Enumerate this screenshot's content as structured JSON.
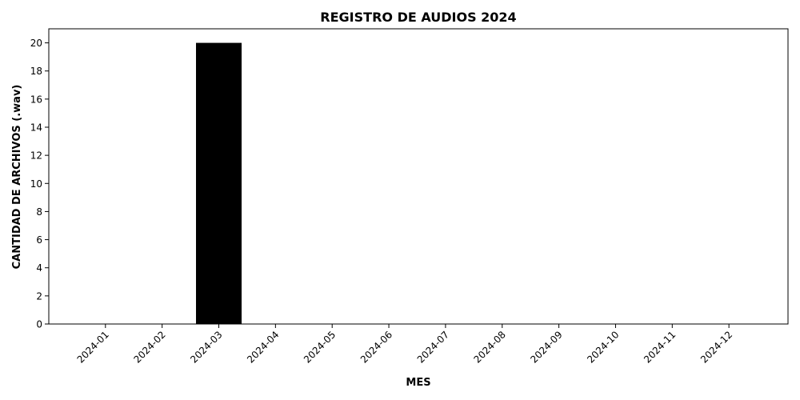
{
  "chart_data": {
    "type": "bar",
    "title": "REGISTRO DE AUDIOS 2024",
    "xlabel": "MES",
    "ylabel": "CANTIDAD DE ARCHIVOS (.wav)",
    "categories": [
      "2024-01",
      "2024-02",
      "2024-03",
      "2024-04",
      "2024-05",
      "2024-06",
      "2024-07",
      "2024-08",
      "2024-09",
      "2024-10",
      "2024-11",
      "2024-12"
    ],
    "values": [
      0,
      0,
      20,
      0,
      0,
      0,
      0,
      0,
      0,
      0,
      0,
      0
    ],
    "ylim": [
      0,
      21
    ],
    "yticks": [
      0,
      2,
      4,
      6,
      8,
      10,
      12,
      14,
      16,
      18,
      20
    ],
    "bar_color": "#000000",
    "grid": false,
    "legend": null
  }
}
